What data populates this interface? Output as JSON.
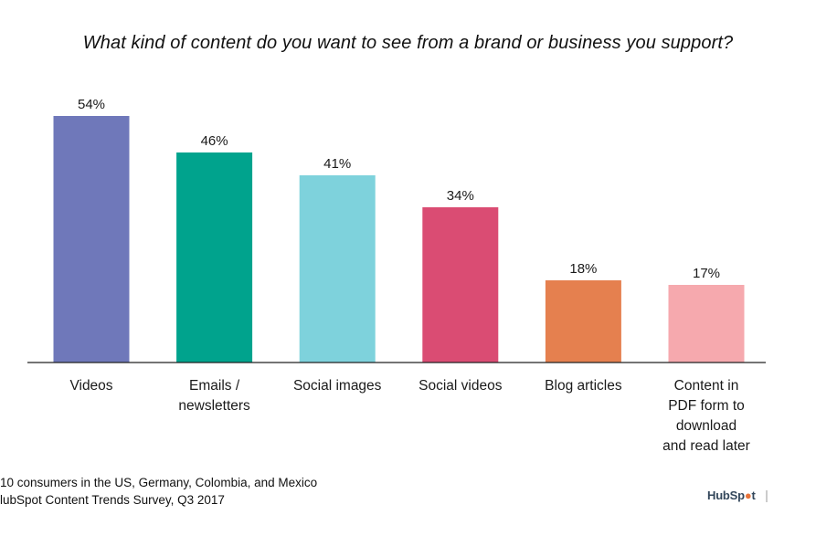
{
  "title": "What kind of content do you want to see from a brand or business you support?",
  "chart_data": {
    "type": "bar",
    "title": "What kind of content do you want to see from a brand or business you support?",
    "xlabel": "",
    "ylabel": "",
    "ylim": [
      0,
      60
    ],
    "grid": false,
    "legend": "none",
    "categories": [
      "Videos",
      "Emails / newsletters",
      "Social images",
      "Social videos",
      "Blog articles",
      "Content in PDF form to download and read later"
    ],
    "category_lines": [
      [
        "Videos"
      ],
      [
        "Emails /",
        "newsletters"
      ],
      [
        "Social images"
      ],
      [
        "Social videos"
      ],
      [
        "Blog articles"
      ],
      [
        "Content in",
        "PDF form to",
        "download",
        "and read later"
      ]
    ],
    "values": [
      54,
      46,
      41,
      34,
      18,
      17
    ],
    "value_labels": [
      "54%",
      "46%",
      "41%",
      "34%",
      "18%",
      "17%"
    ],
    "colors": [
      "#6f78ba",
      "#00a38d",
      "#7ed2dc",
      "#da4c73",
      "#e5804f",
      "#f6a9ae"
    ]
  },
  "footnotes": [
    "10 consumers in the US, Germany, Colombia, and Mexico",
    "lubSpot Content Trends Survey, Q3 2017"
  ],
  "logo": {
    "text_a": "HubSp",
    "text_b": "t"
  }
}
